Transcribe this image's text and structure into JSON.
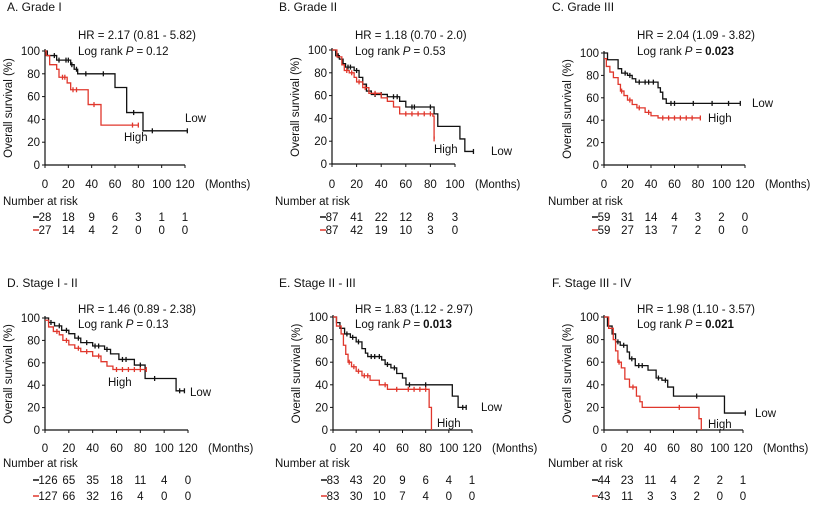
{
  "colors": {
    "low": "#111111",
    "high": "#e0372c"
  },
  "chart_data": [
    {
      "type": "line",
      "title": "A. Grade I",
      "hr_text": "HR = 2.17 (0.81 - 5.82)",
      "log_rank_label": "Log rank",
      "p_symbol": "P",
      "p_value": "0.12",
      "p_bold": false,
      "ylabel": "Overall survival (%)",
      "xunit": "(Months)",
      "xticks": [
        "0",
        "20",
        "40",
        "60",
        "80",
        "100",
        "120"
      ],
      "yticks": [
        "0",
        "20",
        "40",
        "60",
        "80",
        "100"
      ],
      "xlim": [
        0,
        120
      ],
      "ylim": [
        0,
        100
      ],
      "risk_title": "Number at risk",
      "series": [
        {
          "name": "Low",
          "color": "low",
          "risk": [
            "28",
            "18",
            "9",
            "6",
            "3",
            "1",
            "1"
          ],
          "steps": [
            [
              0,
              100
            ],
            [
              2,
              96
            ],
            [
              10,
              92
            ],
            [
              22,
              88
            ],
            [
              25,
              84
            ],
            [
              28,
              80
            ],
            [
              60,
              68
            ],
            [
              70,
              46
            ],
            [
              84,
              30
            ]
          ],
          "end": 122,
          "censors": [
            8,
            12,
            18,
            20,
            23,
            27,
            35,
            50,
            76,
            92,
            122
          ]
        },
        {
          "name": "High",
          "color": "high",
          "risk": [
            "27",
            "14",
            "4",
            "2",
            "0",
            "0",
            "0"
          ],
          "steps": [
            [
              0,
              100
            ],
            [
              1,
              96
            ],
            [
              4,
              88
            ],
            [
              10,
              84
            ],
            [
              12,
              77
            ],
            [
              19,
              72
            ],
            [
              22,
              66
            ],
            [
              37,
              53
            ],
            [
              48,
              35
            ]
          ],
          "end": 80,
          "censors": [
            15,
            17,
            24,
            27,
            42,
            75,
            80
          ]
        }
      ]
    },
    {
      "type": "line",
      "title": "B. Grade II",
      "hr_text": "HR = 1.18 (0.70 - 2.0)",
      "log_rank_label": "Log rank",
      "p_symbol": "P",
      "p_value": "0.53",
      "p_bold": false,
      "ylabel": "Overall survival (%)",
      "xunit": "(Months)",
      "xticks": [
        "0",
        "20",
        "40",
        "60",
        "80",
        "100"
      ],
      "yticks": [
        "0",
        "20",
        "40",
        "60",
        "80",
        "100"
      ],
      "xlim": [
        0,
        100
      ],
      "ylim": [
        0,
        100
      ],
      "risk_title": "Number at risk",
      "series": [
        {
          "name": "Low",
          "color": "low",
          "risk": [
            "87",
            "41",
            "22",
            "12",
            "8",
            "3"
          ],
          "steps": [
            [
              0,
              100
            ],
            [
              3,
              95
            ],
            [
              6,
              92
            ],
            [
              9,
              88
            ],
            [
              11,
              85
            ],
            [
              18,
              82
            ],
            [
              22,
              76
            ],
            [
              25,
              70
            ],
            [
              28,
              64
            ],
            [
              32,
              61
            ],
            [
              45,
              59
            ],
            [
              55,
              55
            ],
            [
              60,
              50
            ],
            [
              83,
              44
            ],
            [
              86,
              33
            ],
            [
              104,
              22
            ],
            [
              108,
              11
            ]
          ],
          "end": 115,
          "censors": [
            5,
            13,
            15,
            20,
            35,
            40,
            50,
            53,
            65,
            67,
            80,
            115
          ]
        },
        {
          "name": "High",
          "color": "high",
          "risk": [
            "87",
            "42",
            "19",
            "10",
            "3",
            "0"
          ],
          "steps": [
            [
              0,
              100
            ],
            [
              4,
              94
            ],
            [
              8,
              87
            ],
            [
              10,
              82
            ],
            [
              14,
              80
            ],
            [
              18,
              76
            ],
            [
              20,
              72
            ],
            [
              25,
              67
            ],
            [
              30,
              62
            ],
            [
              40,
              58
            ],
            [
              45,
              55
            ],
            [
              50,
              50
            ],
            [
              55,
              44
            ],
            [
              82,
              42
            ],
            [
              83,
              22
            ]
          ],
          "end": 83,
          "censors": [
            12,
            16,
            22,
            27,
            35,
            60,
            65,
            70,
            75,
            80,
            83
          ]
        }
      ]
    },
    {
      "type": "line",
      "title": "C. Grade III",
      "hr_text": "HR = 2.04 (1.09 - 3.82)",
      "log_rank_label": "Log rank",
      "p_symbol": "P",
      "p_value": "0.023",
      "p_bold": true,
      "ylabel": "Overall survival (%)",
      "xunit": "(Months)",
      "xticks": [
        "0",
        "20",
        "40",
        "60",
        "80",
        "100",
        "120"
      ],
      "yticks": [
        "0",
        "20",
        "40",
        "60",
        "80",
        "100"
      ],
      "xlim": [
        0,
        120
      ],
      "ylim": [
        0,
        100
      ],
      "risk_title": "Number at risk",
      "series": [
        {
          "name": "Low",
          "color": "low",
          "risk": [
            "59",
            "31",
            "14",
            "4",
            "3",
            "2",
            "0"
          ],
          "steps": [
            [
              0,
              100
            ],
            [
              3,
              94
            ],
            [
              12,
              86
            ],
            [
              15,
              82
            ],
            [
              20,
              80
            ],
            [
              24,
              77
            ],
            [
              27,
              74
            ],
            [
              46,
              69
            ],
            [
              48,
              65
            ],
            [
              50,
              59
            ],
            [
              53,
              55
            ]
          ],
          "end": 116,
          "censors": [
            18,
            22,
            30,
            35,
            38,
            42,
            57,
            60,
            76,
            92,
            106,
            116
          ]
        },
        {
          "name": "High",
          "color": "high",
          "risk": [
            "59",
            "27",
            "13",
            "7",
            "2",
            "0",
            "0"
          ],
          "steps": [
            [
              0,
              95
            ],
            [
              2,
              88
            ],
            [
              5,
              83
            ],
            [
              8,
              78
            ],
            [
              12,
              72
            ],
            [
              14,
              66
            ],
            [
              17,
              62
            ],
            [
              20,
              58
            ],
            [
              24,
              54
            ],
            [
              28,
              51
            ],
            [
              35,
              47
            ],
            [
              40,
              44
            ],
            [
              46,
              42
            ]
          ],
          "end": 82,
          "censors": [
            15,
            22,
            30,
            38,
            50,
            55,
            60,
            65,
            70,
            75,
            82
          ]
        }
      ]
    },
    {
      "type": "line",
      "title": "D. Stage I - II",
      "hr_text": "HR = 1.46 (0.89 - 2.38)",
      "log_rank_label": "Log rank",
      "p_symbol": "P",
      "p_value": "0.13",
      "p_bold": false,
      "ylabel": "Overall survival (%)",
      "xunit": "(Months)",
      "xticks": [
        "0",
        "20",
        "40",
        "60",
        "80",
        "100",
        "120"
      ],
      "yticks": [
        "0",
        "20",
        "40",
        "60",
        "80",
        "100"
      ],
      "xlim": [
        0,
        120
      ],
      "ylim": [
        0,
        100
      ],
      "risk_title": "Number at risk",
      "series": [
        {
          "name": "Low",
          "color": "low",
          "risk": [
            "126",
            "65",
            "35",
            "18",
            "11",
            "4",
            "0"
          ],
          "steps": [
            [
              0,
              100
            ],
            [
              3,
              96
            ],
            [
              8,
              93
            ],
            [
              14,
              89
            ],
            [
              20,
              86
            ],
            [
              25,
              82
            ],
            [
              30,
              78
            ],
            [
              40,
              75
            ],
            [
              50,
              72
            ],
            [
              55,
              68
            ],
            [
              62,
              63
            ],
            [
              75,
              58
            ],
            [
              84,
              46
            ],
            [
              110,
              35
            ]
          ],
          "end": 117,
          "censors": [
            5,
            12,
            18,
            28,
            35,
            42,
            45,
            52,
            65,
            68,
            80,
            92,
            113,
            117
          ]
        },
        {
          "name": "High",
          "color": "high",
          "risk": [
            "127",
            "66",
            "32",
            "16",
            "4",
            "0",
            "0"
          ],
          "steps": [
            [
              0,
              98
            ],
            [
              3,
              92
            ],
            [
              7,
              88
            ],
            [
              12,
              85
            ],
            [
              15,
              80
            ],
            [
              20,
              76
            ],
            [
              25,
              73
            ],
            [
              30,
              70
            ],
            [
              40,
              66
            ],
            [
              47,
              61
            ],
            [
              52,
              57
            ],
            [
              57,
              54
            ]
          ],
          "end": 85,
          "censors": [
            10,
            18,
            28,
            35,
            45,
            60,
            65,
            70,
            75,
            80,
            85
          ]
        }
      ]
    },
    {
      "type": "line",
      "title": "E. Stage II - III",
      "hr_text": "HR = 1.83 (1.12 - 2.97)",
      "log_rank_label": "Log rank",
      "p_symbol": "P",
      "p_value": "0.013",
      "p_bold": true,
      "ylabel": "Overall survival (%)",
      "xunit": "(Months)",
      "xticks": [
        "0",
        "20",
        "40",
        "60",
        "80",
        "100",
        "120"
      ],
      "yticks": [
        "0",
        "20",
        "40",
        "60",
        "80",
        "100"
      ],
      "xlim": [
        0,
        120
      ],
      "ylim": [
        0,
        100
      ],
      "risk_title": "Number at risk",
      "series": [
        {
          "name": "Low",
          "color": "low",
          "risk": [
            "83",
            "43",
            "20",
            "9",
            "6",
            "4",
            "1"
          ],
          "steps": [
            [
              0,
              100
            ],
            [
              3,
              95
            ],
            [
              6,
              90
            ],
            [
              10,
              85
            ],
            [
              15,
              82
            ],
            [
              20,
              78
            ],
            [
              25,
              72
            ],
            [
              28,
              68
            ],
            [
              30,
              65
            ],
            [
              42,
              62
            ],
            [
              45,
              58
            ],
            [
              50,
              55
            ],
            [
              55,
              50
            ],
            [
              60,
              46
            ],
            [
              63,
              40
            ],
            [
              103,
              30
            ],
            [
              108,
              20
            ]
          ],
          "end": 115,
          "censors": [
            12,
            17,
            22,
            33,
            36,
            40,
            47,
            53,
            66,
            80,
            112,
            115
          ]
        },
        {
          "name": "High",
          "color": "high",
          "risk": [
            "83",
            "30",
            "10",
            "7",
            "4",
            "0",
            "0"
          ],
          "steps": [
            [
              0,
              100
            ],
            [
              3,
              92
            ],
            [
              7,
              85
            ],
            [
              9,
              75
            ],
            [
              11,
              67
            ],
            [
              13,
              60
            ],
            [
              16,
              56
            ],
            [
              20,
              52
            ],
            [
              25,
              48
            ],
            [
              32,
              44
            ],
            [
              40,
              40
            ],
            [
              47,
              36
            ],
            [
              83,
              20
            ],
            [
              85,
              0
            ]
          ],
          "end": 85,
          "censors": [
            14,
            18,
            22,
            27,
            30,
            45,
            55,
            65,
            70,
            75,
            80
          ]
        }
      ]
    },
    {
      "type": "line",
      "title": "F. Stage III - IV",
      "hr_text": "HR = 1.98 (1.10 - 3.57)",
      "log_rank_label": "Log rank",
      "p_symbol": "P",
      "p_value": "0.021",
      "p_bold": true,
      "ylabel": "Overall survival (%)",
      "xunit": "(Months)",
      "xticks": [
        "0",
        "20",
        "40",
        "60",
        "80",
        "100",
        "120"
      ],
      "yticks": [
        "0",
        "20",
        "40",
        "60",
        "80",
        "100"
      ],
      "xlim": [
        0,
        120
      ],
      "ylim": [
        0,
        100
      ],
      "risk_title": "Number at risk",
      "series": [
        {
          "name": "Low",
          "color": "low",
          "risk": [
            "44",
            "23",
            "11",
            "4",
            "2",
            "2",
            "1"
          ],
          "steps": [
            [
              0,
              100
            ],
            [
              3,
              92
            ],
            [
              7,
              85
            ],
            [
              10,
              78
            ],
            [
              14,
              75
            ],
            [
              20,
              69
            ],
            [
              22,
              63
            ],
            [
              27,
              57
            ],
            [
              38,
              53
            ],
            [
              45,
              46
            ],
            [
              50,
              44
            ],
            [
              55,
              38
            ],
            [
              60,
              30
            ],
            [
              104,
              15
            ]
          ],
          "end": 122,
          "censors": [
            12,
            17,
            24,
            30,
            33,
            47,
            53,
            80,
            122
          ]
        },
        {
          "name": "High",
          "color": "high",
          "risk": [
            "43",
            "11",
            "3",
            "3",
            "2",
            "0",
            "0"
          ],
          "steps": [
            [
              0,
              100
            ],
            [
              4,
              90
            ],
            [
              8,
              80
            ],
            [
              10,
              70
            ],
            [
              12,
              60
            ],
            [
              15,
              55
            ],
            [
              18,
              45
            ],
            [
              22,
              38
            ],
            [
              28,
              30
            ],
            [
              31,
              25
            ],
            [
              33,
              20
            ],
            [
              82,
              10
            ],
            [
              84,
              0
            ]
          ],
          "end": 84,
          "censors": [
            13,
            25,
            65
          ]
        }
      ]
    }
  ]
}
